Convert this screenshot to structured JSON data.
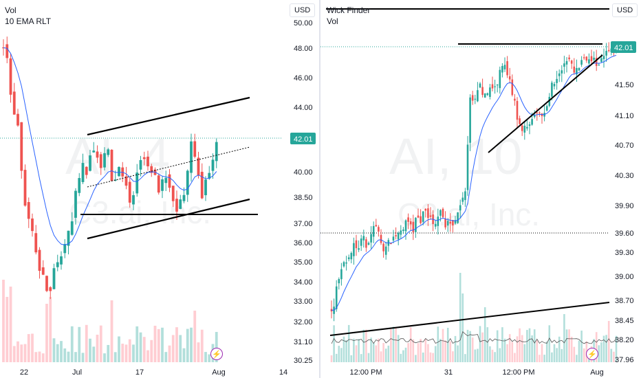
{
  "left": {
    "indicators": [
      "Vol",
      "10 EMA RLT"
    ],
    "currency": "USD",
    "watermark_symbol": "AI, 4",
    "watermark_name": "C3.ai, Inc.",
    "price_tag": "42.01",
    "bolt_icon": "lightning-icon",
    "chart_data": {
      "type": "candlestick",
      "price_axis": [
        "44.00",
        "42.00",
        "40.00",
        "38.50",
        "37.00",
        "36.00",
        "35.00",
        "34.00",
        "33.00",
        "32.00",
        "31.10",
        "30.25"
      ],
      "time_axis": [
        "22",
        "Jul",
        "17",
        "Aug",
        "14"
      ],
      "last_price": 42.01,
      "colors": {
        "up": "#26a69a",
        "down": "#ef5350",
        "ema": "#2962ff",
        "vol_up": "#b2dfdb",
        "vol_down": "#ffcdd2",
        "price_label": "#26a69a"
      }
    }
  },
  "right": {
    "indicators": [
      "Wick Finder",
      "Vol"
    ],
    "currency": "USD",
    "watermark_symbol": "AI, 10",
    "watermark_name": "C3.ai, Inc.",
    "price_tag": "42.01",
    "bolt_icon": "lightning-icon",
    "chart_data": {
      "type": "candlestick",
      "left_axis": [
        "50.00",
        "48.00",
        "46.00",
        "44.00",
        "42.00",
        "40.00",
        "38.50",
        "37.00",
        "36.00",
        "35.00",
        "34.00",
        "33.00",
        "32.00",
        "31.10",
        "30.25"
      ],
      "right_axis": [
        "41.50",
        "41.10",
        "40.70",
        "40.30",
        "39.90",
        "39.60",
        "39.30",
        "39.00",
        "38.70",
        "38.45",
        "38.20",
        "37.96"
      ],
      "time_axis": [
        "12:00 PM",
        "31",
        "12:00 PM",
        "Aug"
      ],
      "last_price": 42.01,
      "colors": {
        "up": "#26a69a",
        "down": "#ef5350",
        "ema": "#2962ff",
        "vol_up": "#b2dfdb",
        "vol_down": "#ffcdd2",
        "price_label": "#26a69a"
      }
    }
  }
}
